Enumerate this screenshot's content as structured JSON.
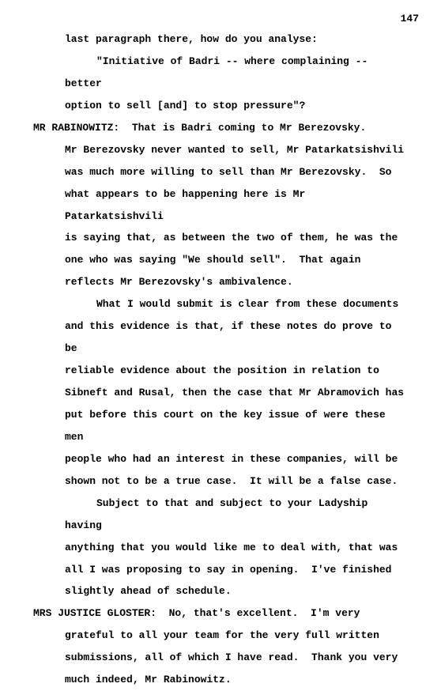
{
  "page_number": "147",
  "font": {
    "family": "Courier New",
    "size_pt": 10,
    "color": "#000000",
    "weight": "bold"
  },
  "background_color": "#ffffff",
  "lines": [
    {
      "cls": "indent-hang",
      "text": "last paragraph there, how do you analyse:"
    },
    {
      "cls": "indent-para",
      "text": "\"Initiative of Badri -- where complaining -- better"
    },
    {
      "cls": "indent-hang",
      "text": "option to sell [and] to stop pressure\"?"
    },
    {
      "cls": "speaker-start",
      "text": "MR RABINOWITZ:  That is Badri coming to Mr Berezovsky."
    },
    {
      "cls": "speaker-cont",
      "text": "Mr Berezovsky never wanted to sell, Mr Patarkatsishvili"
    },
    {
      "cls": "speaker-cont",
      "text": "was much more willing to sell than Mr Berezovsky.  So"
    },
    {
      "cls": "speaker-cont",
      "text": "what appears to be happening here is Mr Patarkatsishvili"
    },
    {
      "cls": "speaker-cont",
      "text": "is saying that, as between the two of them, he was the"
    },
    {
      "cls": "speaker-cont",
      "text": "one who was saying \"We should sell\".  That again"
    },
    {
      "cls": "speaker-cont",
      "text": "reflects Mr Berezovsky's ambivalence."
    },
    {
      "cls": "indent-para",
      "text": "What I would submit is clear from these documents"
    },
    {
      "cls": "speaker-cont",
      "text": "and this evidence is that, if these notes do prove to be"
    },
    {
      "cls": "speaker-cont",
      "text": "reliable evidence about the position in relation to"
    },
    {
      "cls": "speaker-cont",
      "text": "Sibneft and Rusal, then the case that Mr Abramovich has"
    },
    {
      "cls": "speaker-cont",
      "text": "put before this court on the key issue of were these men"
    },
    {
      "cls": "speaker-cont",
      "text": "people who had an interest in these companies, will be"
    },
    {
      "cls": "speaker-cont",
      "text": "shown not to be a true case.  It will be a false case."
    },
    {
      "cls": "indent-para",
      "text": "Subject to that and subject to your Ladyship having"
    },
    {
      "cls": "speaker-cont",
      "text": "anything that you would like me to deal with, that was"
    },
    {
      "cls": "speaker-cont",
      "text": "all I was proposing to say in opening.  I've finished"
    },
    {
      "cls": "speaker-cont",
      "text": "slightly ahead of schedule."
    },
    {
      "cls": "speaker-start",
      "text": "MRS JUSTICE GLOSTER:  No, that's excellent.  I'm very"
    },
    {
      "cls": "speaker-cont",
      "text": "grateful to all your team for the very full written"
    },
    {
      "cls": "speaker-cont",
      "text": "submissions, all of which I have read.  Thank you very"
    },
    {
      "cls": "speaker-cont",
      "text": "much indeed, Mr Rabinowitz."
    }
  ]
}
